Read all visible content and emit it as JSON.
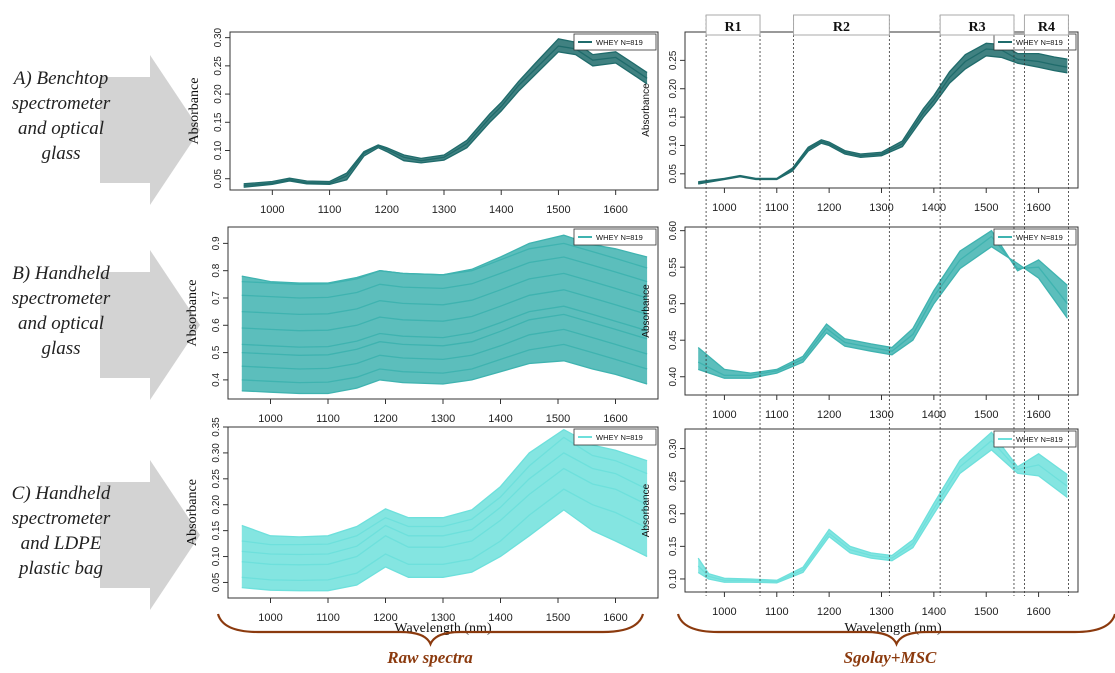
{
  "row_labels": [
    "A) Benchtop\nspectrometer\nand optical\nglass",
    "B) Handheld\nspectrometer\nand optical\nglass",
    "C) Handheld\nspectrometer\nand LDPE\nplastic bag"
  ],
  "captions": {
    "left": "Raw spectra",
    "right": "Sgolay+MSC"
  },
  "xlabel": "Wavelength (nm)",
  "colors": {
    "A": "#1f6b6b",
    "B": "#3fb3b0",
    "C": "#6ee0dc",
    "brace": "#8b3a0e",
    "arrow": "#d3d3d3"
  },
  "regions": [
    {
      "label": "R1",
      "x0": 965,
      "x1": 1068
    },
    {
      "label": "R2",
      "x0": 1132,
      "x1": 1315
    },
    {
      "label": "R3",
      "x0": 1412,
      "x1": 1553
    },
    {
      "label": "R4",
      "x0": 1573,
      "x1": 1657
    }
  ],
  "chart_data": [
    {
      "id": "raw-A",
      "type": "line",
      "ylabel": "Absorbance",
      "legend": "WHEY  N=819",
      "xlim": [
        940,
        1660
      ],
      "ylim": [
        0.03,
        0.31
      ],
      "xticks": [
        1000,
        1100,
        1200,
        1300,
        1400,
        1500,
        1600
      ],
      "yticks": [
        0.05,
        0.1,
        0.15,
        0.2,
        0.25,
        0.3
      ],
      "x": [
        950,
        1000,
        1030,
        1060,
        1100,
        1130,
        1160,
        1185,
        1200,
        1230,
        1260,
        1300,
        1340,
        1380,
        1400,
        1430,
        1460,
        1500,
        1530,
        1560,
        1600,
        1630,
        1655
      ],
      "series": [
        {
          "values": [
            0.035,
            0.04,
            0.046,
            0.041,
            0.04,
            0.048,
            0.09,
            0.105,
            0.098,
            0.082,
            0.078,
            0.083,
            0.105,
            0.15,
            0.17,
            0.205,
            0.235,
            0.275,
            0.27,
            0.25,
            0.255,
            0.235,
            0.218
          ]
        },
        {
          "values": [
            0.038,
            0.042,
            0.048,
            0.043,
            0.042,
            0.055,
            0.095,
            0.108,
            0.102,
            0.088,
            0.082,
            0.088,
            0.112,
            0.158,
            0.178,
            0.215,
            0.245,
            0.285,
            0.28,
            0.26,
            0.265,
            0.245,
            0.228
          ]
        },
        {
          "values": [
            0.041,
            0.045,
            0.051,
            0.046,
            0.045,
            0.06,
            0.098,
            0.11,
            0.105,
            0.092,
            0.086,
            0.092,
            0.118,
            0.165,
            0.185,
            0.222,
            0.255,
            0.298,
            0.292,
            0.27,
            0.275,
            0.255,
            0.238
          ]
        }
      ]
    },
    {
      "id": "msc-A",
      "type": "line",
      "ylabel": "Absorbance",
      "legend": "WHEY  N=819",
      "xlim": [
        940,
        1660
      ],
      "ylim": [
        0.025,
        0.3
      ],
      "xticks": [
        1000,
        1100,
        1200,
        1300,
        1400,
        1500,
        1600
      ],
      "yticks": [
        0.05,
        0.1,
        0.15,
        0.2,
        0.25
      ],
      "x": [
        950,
        1000,
        1030,
        1060,
        1100,
        1130,
        1160,
        1185,
        1200,
        1230,
        1260,
        1300,
        1340,
        1380,
        1400,
        1430,
        1460,
        1500,
        1530,
        1560,
        1600,
        1630,
        1655
      ],
      "series": [
        {
          "values": [
            0.032,
            0.04,
            0.045,
            0.04,
            0.04,
            0.055,
            0.09,
            0.104,
            0.1,
            0.085,
            0.079,
            0.082,
            0.098,
            0.15,
            0.172,
            0.21,
            0.235,
            0.258,
            0.255,
            0.245,
            0.238,
            0.232,
            0.228
          ]
        },
        {
          "values": [
            0.034,
            0.041,
            0.046,
            0.041,
            0.041,
            0.058,
            0.094,
            0.107,
            0.103,
            0.088,
            0.082,
            0.085,
            0.103,
            0.158,
            0.18,
            0.22,
            0.248,
            0.27,
            0.268,
            0.252,
            0.248,
            0.242,
            0.238
          ]
        },
        {
          "values": [
            0.036,
            0.042,
            0.047,
            0.042,
            0.042,
            0.06,
            0.097,
            0.11,
            0.106,
            0.091,
            0.085,
            0.088,
            0.108,
            0.165,
            0.188,
            0.23,
            0.26,
            0.28,
            0.278,
            0.262,
            0.262,
            0.256,
            0.252
          ]
        }
      ]
    },
    {
      "id": "raw-B",
      "type": "line",
      "ylabel": "Absorbance",
      "legend": "WHEY  N=819",
      "xlim": [
        940,
        1660
      ],
      "ylim": [
        0.33,
        0.96
      ],
      "xticks": [
        1000,
        1100,
        1200,
        1300,
        1400,
        1500,
        1600
      ],
      "yticks": [
        0.4,
        0.5,
        0.6,
        0.7,
        0.8,
        0.9
      ],
      "x": [
        950,
        1000,
        1050,
        1100,
        1150,
        1190,
        1230,
        1300,
        1350,
        1400,
        1450,
        1510,
        1560,
        1600,
        1655
      ],
      "series": [
        {
          "values": [
            0.36,
            0.355,
            0.35,
            0.35,
            0.37,
            0.4,
            0.39,
            0.385,
            0.4,
            0.43,
            0.46,
            0.47,
            0.44,
            0.42,
            0.385
          ]
        },
        {
          "values": [
            0.4,
            0.395,
            0.39,
            0.392,
            0.41,
            0.44,
            0.43,
            0.425,
            0.44,
            0.475,
            0.51,
            0.53,
            0.5,
            0.475,
            0.44
          ]
        },
        {
          "values": [
            0.45,
            0.445,
            0.44,
            0.442,
            0.46,
            0.49,
            0.48,
            0.475,
            0.49,
            0.525,
            0.565,
            0.585,
            0.555,
            0.53,
            0.495
          ]
        },
        {
          "values": [
            0.5,
            0.495,
            0.49,
            0.492,
            0.512,
            0.54,
            0.53,
            0.525,
            0.54,
            0.578,
            0.62,
            0.64,
            0.61,
            0.585,
            0.55
          ]
        },
        {
          "values": [
            0.53,
            0.525,
            0.52,
            0.522,
            0.542,
            0.57,
            0.56,
            0.555,
            0.572,
            0.61,
            0.65,
            0.67,
            0.64,
            0.615,
            0.58
          ]
        },
        {
          "values": [
            0.59,
            0.585,
            0.58,
            0.582,
            0.6,
            0.63,
            0.62,
            0.615,
            0.632,
            0.67,
            0.71,
            0.73,
            0.7,
            0.675,
            0.64
          ]
        },
        {
          "values": [
            0.65,
            0.645,
            0.64,
            0.642,
            0.66,
            0.69,
            0.68,
            0.675,
            0.692,
            0.73,
            0.77,
            0.79,
            0.76,
            0.735,
            0.7
          ]
        },
        {
          "values": [
            0.71,
            0.705,
            0.7,
            0.702,
            0.72,
            0.75,
            0.74,
            0.735,
            0.752,
            0.79,
            0.83,
            0.85,
            0.82,
            0.795,
            0.76
          ]
        },
        {
          "values": [
            0.76,
            0.755,
            0.75,
            0.752,
            0.77,
            0.8,
            0.79,
            0.785,
            0.8,
            0.84,
            0.88,
            0.9,
            0.87,
            0.845,
            0.81
          ]
        },
        {
          "values": [
            0.78,
            0.76,
            0.755,
            0.755,
            0.775,
            0.8,
            0.79,
            0.785,
            0.805,
            0.85,
            0.9,
            0.93,
            0.895,
            0.88,
            0.85
          ]
        }
      ]
    },
    {
      "id": "msc-B",
      "type": "line",
      "ylabel": "Absorbance",
      "legend": "WHEY  N=819",
      "xlim": [
        940,
        1660
      ],
      "ylim": [
        0.375,
        0.605
      ],
      "xticks": [
        1000,
        1100,
        1200,
        1300,
        1400,
        1500,
        1600
      ],
      "yticks": [
        0.4,
        0.45,
        0.5,
        0.55,
        0.6
      ],
      "x": [
        950,
        1000,
        1050,
        1100,
        1150,
        1195,
        1230,
        1280,
        1320,
        1360,
        1400,
        1450,
        1510,
        1560,
        1600,
        1655
      ],
      "series": [
        {
          "values": [
            0.41,
            0.398,
            0.398,
            0.405,
            0.42,
            0.46,
            0.442,
            0.435,
            0.43,
            0.45,
            0.5,
            0.548,
            0.578,
            0.555,
            0.535,
            0.48
          ]
        },
        {
          "values": [
            0.42,
            0.402,
            0.402,
            0.408,
            0.424,
            0.466,
            0.447,
            0.44,
            0.435,
            0.458,
            0.51,
            0.56,
            0.592,
            0.548,
            0.55,
            0.5
          ]
        },
        {
          "values": [
            0.44,
            0.41,
            0.405,
            0.41,
            0.428,
            0.472,
            0.452,
            0.445,
            0.44,
            0.466,
            0.518,
            0.572,
            0.6,
            0.545,
            0.56,
            0.525
          ]
        }
      ]
    },
    {
      "id": "raw-C",
      "type": "line",
      "ylabel": "Absorbance",
      "legend": "WHEY  N=819",
      "xlim": [
        940,
        1660
      ],
      "ylim": [
        0.02,
        0.35
      ],
      "xticks": [
        1000,
        1100,
        1200,
        1300,
        1400,
        1500,
        1600
      ],
      "yticks": [
        0.05,
        0.1,
        0.15,
        0.2,
        0.25,
        0.3,
        0.35
      ],
      "x": [
        950,
        1000,
        1050,
        1100,
        1150,
        1200,
        1240,
        1300,
        1350,
        1400,
        1450,
        1510,
        1560,
        1600,
        1655
      ],
      "series": [
        {
          "values": [
            0.04,
            0.035,
            0.034,
            0.034,
            0.045,
            0.08,
            0.06,
            0.06,
            0.07,
            0.1,
            0.14,
            0.19,
            0.15,
            0.13,
            0.1
          ]
        },
        {
          "values": [
            0.06,
            0.055,
            0.054,
            0.055,
            0.068,
            0.105,
            0.085,
            0.085,
            0.095,
            0.13,
            0.18,
            0.23,
            0.2,
            0.185,
            0.155
          ]
        },
        {
          "values": [
            0.09,
            0.085,
            0.084,
            0.085,
            0.1,
            0.14,
            0.118,
            0.118,
            0.13,
            0.17,
            0.22,
            0.27,
            0.24,
            0.23,
            0.2
          ]
        },
        {
          "values": [
            0.11,
            0.105,
            0.104,
            0.105,
            0.12,
            0.16,
            0.14,
            0.14,
            0.152,
            0.195,
            0.25,
            0.3,
            0.27,
            0.26,
            0.23
          ]
        },
        {
          "values": [
            0.13,
            0.123,
            0.123,
            0.124,
            0.14,
            0.175,
            0.158,
            0.158,
            0.172,
            0.215,
            0.275,
            0.33,
            0.295,
            0.285,
            0.26
          ]
        },
        {
          "values": [
            0.16,
            0.14,
            0.138,
            0.14,
            0.158,
            0.192,
            0.175,
            0.175,
            0.19,
            0.235,
            0.3,
            0.345,
            0.315,
            0.305,
            0.285
          ]
        }
      ]
    },
    {
      "id": "msc-C",
      "type": "line",
      "ylabel": "Absorbance",
      "legend": "WHEY  N=819",
      "xlim": [
        940,
        1660
      ],
      "ylim": [
        0.08,
        0.33
      ],
      "xticks": [
        1000,
        1100,
        1200,
        1300,
        1400,
        1500,
        1600
      ],
      "yticks": [
        0.1,
        0.15,
        0.2,
        0.25,
        0.3
      ],
      "x": [
        950,
        970,
        1000,
        1050,
        1100,
        1150,
        1200,
        1240,
        1280,
        1320,
        1360,
        1400,
        1450,
        1510,
        1560,
        1600,
        1655
      ],
      "series": [
        {
          "values": [
            0.11,
            0.1,
            0.095,
            0.095,
            0.094,
            0.11,
            0.165,
            0.14,
            0.132,
            0.128,
            0.148,
            0.2,
            0.262,
            0.298,
            0.262,
            0.258,
            0.225
          ]
        },
        {
          "values": [
            0.12,
            0.104,
            0.098,
            0.098,
            0.096,
            0.114,
            0.17,
            0.145,
            0.136,
            0.132,
            0.154,
            0.208,
            0.272,
            0.312,
            0.268,
            0.275,
            0.242
          ]
        },
        {
          "values": [
            0.132,
            0.108,
            0.101,
            0.1,
            0.098,
            0.118,
            0.176,
            0.15,
            0.14,
            0.136,
            0.16,
            0.216,
            0.282,
            0.325,
            0.272,
            0.292,
            0.26
          ]
        }
      ]
    }
  ]
}
